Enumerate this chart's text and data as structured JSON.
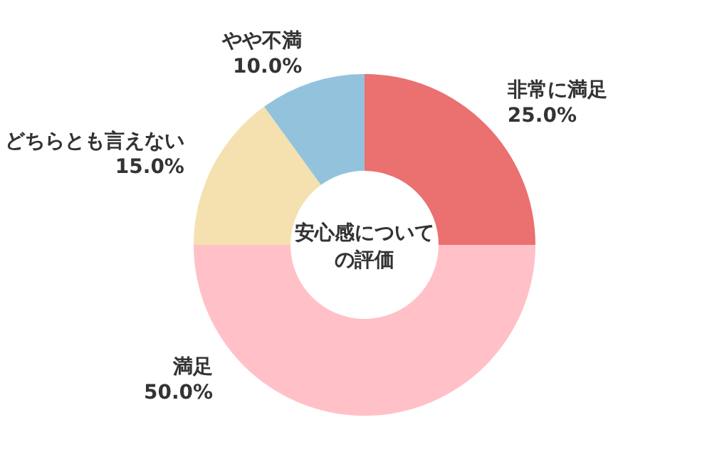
{
  "chart_data": {
    "type": "donut",
    "title": "安心感についての評価",
    "categories": [
      "非常に満足",
      "満足",
      "どちらとも言えない",
      "やや不満"
    ],
    "values": [
      25,
      50,
      15,
      10
    ],
    "value_labels": [
      "25.0%",
      "50.0%",
      "15.0%",
      "10.0%"
    ],
    "colors": [
      "#eb7070",
      "#ffc1c7",
      "#f5e0b0",
      "#93c3dc"
    ]
  }
}
